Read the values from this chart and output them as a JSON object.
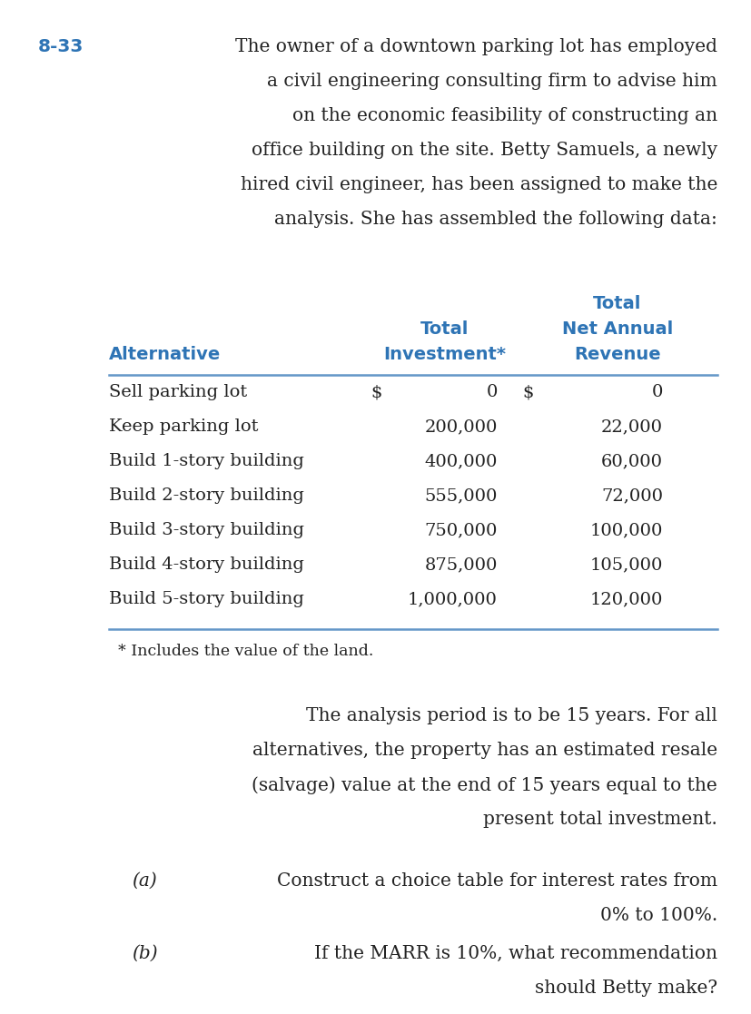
{
  "problem_number": "8-33",
  "problem_number_color": "#2E74B5",
  "table_header_color": "#2E74B5",
  "table_rows": [
    [
      "Sell parking lot",
      "$",
      "0",
      "$",
      "0"
    ],
    [
      "Keep parking lot",
      "",
      "200,000",
      "",
      "22,000"
    ],
    [
      "Build 1-story building",
      "",
      "400,000",
      "",
      "60,000"
    ],
    [
      "Build 2-story building",
      "",
      "555,000",
      "",
      "72,000"
    ],
    [
      "Build 3-story building",
      "",
      "750,000",
      "",
      "100,000"
    ],
    [
      "Build 4-story building",
      "",
      "875,000",
      "",
      "105,000"
    ],
    [
      "Build 5-story building",
      "",
      "1,000,000",
      "",
      "120,000"
    ]
  ],
  "footnote": "* Includes the value of the land.",
  "bg_color": "#FFFFFF",
  "text_color": "#222222",
  "line_color": "#6497C8",
  "intro_lines": [
    "The owner of a downtown parking lot has employed",
    "a civil engineering consulting firm to advise him",
    "on the economic feasibility of constructing an",
    "office building on the site. Betty Samuels, a newly",
    "hired civil engineer, has been assigned to make the",
    "analysis. She has assembled the following data:"
  ],
  "body1_lines": [
    "The analysis period is to be 15 years. For all",
    "alternatives, the property has an estimated resale",
    "(salvage) value at the end of 15 years equal to the",
    "present total investment."
  ],
  "part_a_lines": [
    "Construct a choice table for interest rates from",
    "0% to 100%."
  ],
  "part_b_lines": [
    "If the MARR is 10%, what recommendation",
    "should Betty make?"
  ],
  "body_fontsize": 14.5,
  "num_fontsize": 14.5,
  "table_fontsize": 14.0,
  "header_fontsize": 14.0,
  "footnote_fontsize": 12.5
}
